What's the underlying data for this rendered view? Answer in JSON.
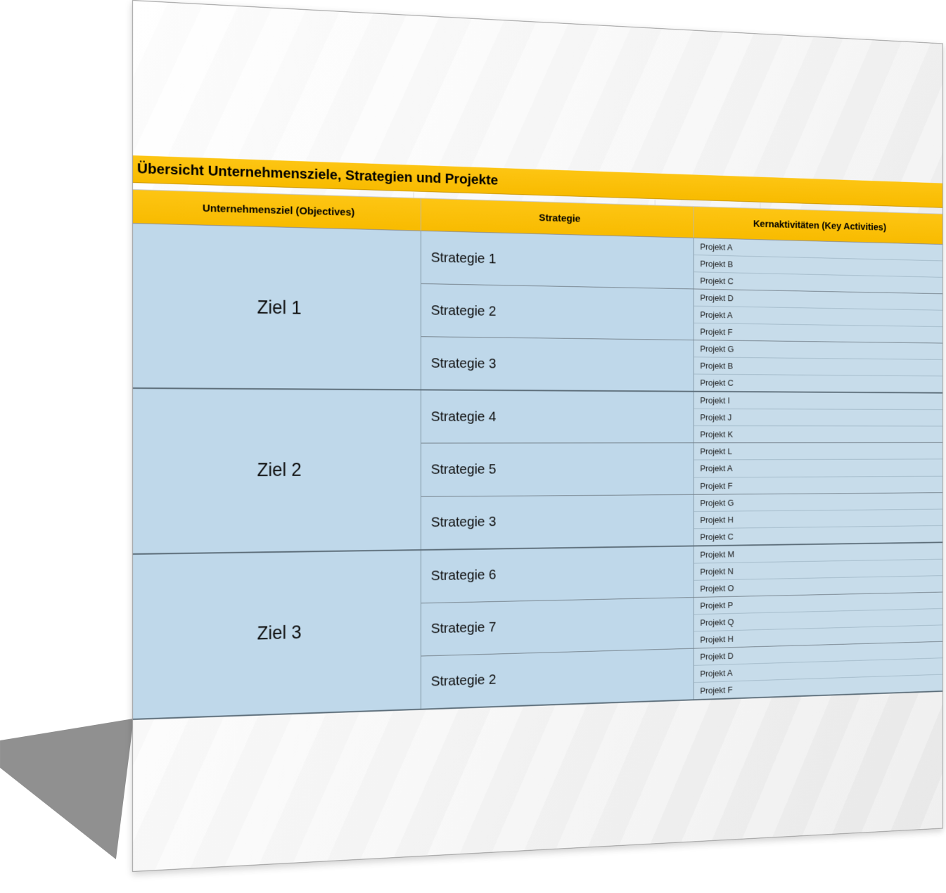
{
  "sheet": {
    "title": "Übersicht Unternehmensziele, Strategien und Projekte",
    "columns": [
      "Unternehmensziel (Objectives)",
      "Strategie",
      "Kernaktivitäten (Key Activities)"
    ],
    "goals": [
      {
        "label": "Ziel 1",
        "strategies": [
          {
            "label": "Strategie 1",
            "projects": [
              "Projekt A",
              "Projekt B",
              "Projekt C"
            ]
          },
          {
            "label": "Strategie 2",
            "projects": [
              "Projekt D",
              "Projekt A",
              "Projekt F"
            ]
          },
          {
            "label": "Strategie 3",
            "projects": [
              "Projekt G",
              "Projekt B",
              "Projekt C"
            ]
          }
        ]
      },
      {
        "label": "Ziel 2",
        "strategies": [
          {
            "label": "Strategie 4",
            "projects": [
              "Projekt I",
              "Projekt J",
              "Projekt K"
            ]
          },
          {
            "label": "Strategie 5",
            "projects": [
              "Projekt L",
              "Projekt A",
              "Projekt F"
            ]
          },
          {
            "label": "Strategie 3",
            "projects": [
              "Projekt G",
              "Projekt H",
              "Projekt C"
            ]
          }
        ]
      },
      {
        "label": "Ziel 3",
        "strategies": [
          {
            "label": "Strategie 6",
            "projects": [
              "Projekt M",
              "Projekt N",
              "Projekt O"
            ]
          },
          {
            "label": "Strategie 7",
            "projects": [
              "Projekt P",
              "Projekt Q",
              "Projekt H"
            ]
          },
          {
            "label": "Strategie 2",
            "projects": [
              "Projekt D",
              "Projekt A",
              "Projekt F"
            ]
          }
        ]
      }
    ],
    "colors": {
      "band_gold": "#F8BB00",
      "cell_blue": "#BFD8EA",
      "project_blue": "#C7DCEA"
    }
  }
}
